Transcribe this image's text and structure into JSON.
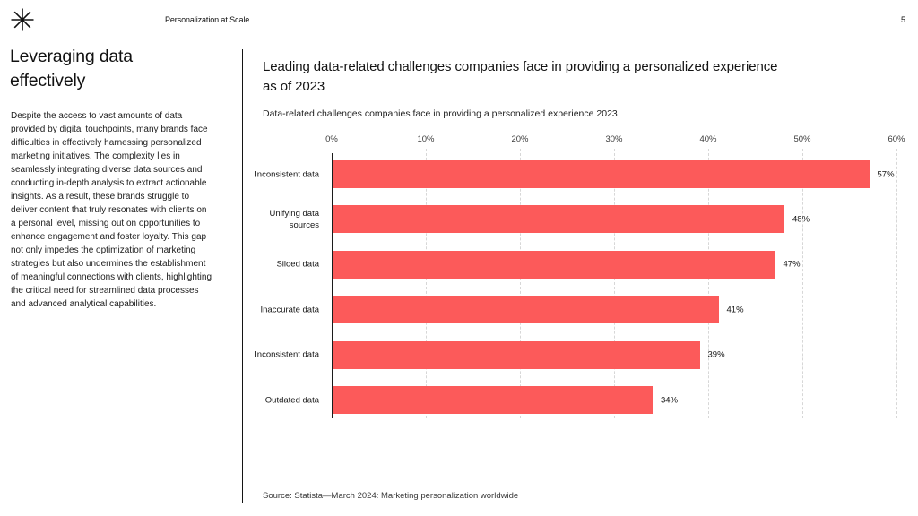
{
  "header": {
    "logo": "asterisk-icon",
    "brand": "Personalization at Scale",
    "page_number": "5"
  },
  "sidebar": {
    "title": "Leveraging data effectively",
    "body": "Despite the access to vast amounts of data provided by digital touchpoints, many brands face difficulties in effectively harnessing personalized marketing initiatives. The complexity lies in seamlessly integrating diverse data sources and conducting in-depth analysis to extract actionable insights. As a result, these brands struggle to deliver content that truly resonates with clients on a personal level, missing out on opportunities to enhance engagement and foster loyalty. This gap not only impedes the optimization of marketing strategies but also undermines the establishment of meaningful connections with clients, highlighting the critical need for streamlined data processes and advanced analytical capabilities."
  },
  "main": {
    "title": "Leading data-related challenges companies face in providing a personalized experience as of 2023",
    "source": "Source: Statista—March 2024: Marketing personalization worldwide"
  },
  "chart_data": {
    "type": "bar",
    "orientation": "horizontal",
    "title": "Data-related challenges companies face in providing a personalized experience 2023",
    "categories": [
      "Inconsistent data",
      "Unifying data sources",
      "Siloed data",
      "Inaccurate data",
      "Inconsistent data",
      "Outdated data"
    ],
    "values": [
      57,
      48,
      47,
      41,
      39,
      34
    ],
    "value_labels": [
      "57%",
      "48%",
      "47%",
      "41%",
      "39%",
      "34%"
    ],
    "x_ticks": [
      "0%",
      "10%",
      "20%",
      "30%",
      "40%",
      "50%",
      "60%"
    ],
    "xlim": [
      0,
      60
    ],
    "bar_color": "#FC5A5A",
    "grid": "dashed-vertical-at-each-10pct",
    "legend": "none"
  }
}
